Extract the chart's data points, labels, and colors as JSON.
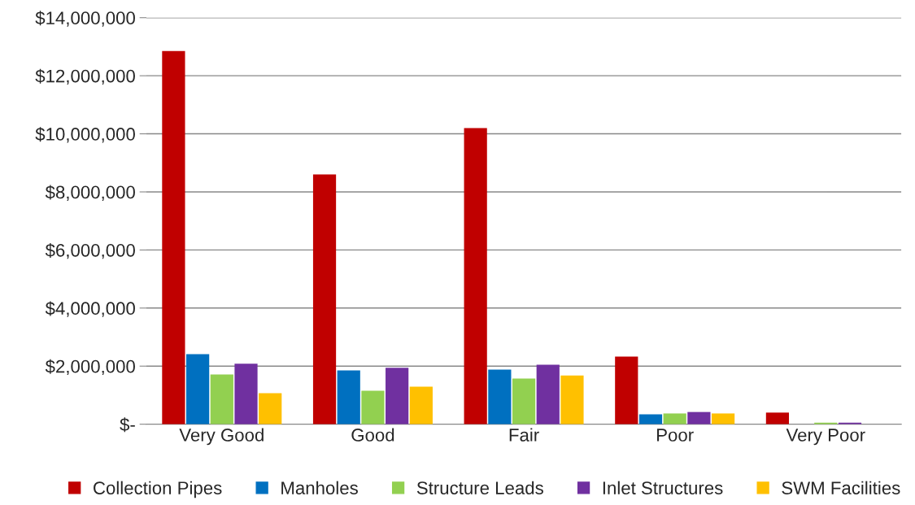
{
  "chart_data": {
    "type": "bar",
    "categories": [
      "Very Good",
      "Good",
      "Fair",
      "Poor",
      "Very Poor"
    ],
    "series": [
      {
        "name": "Collection Pipes",
        "color": "#c00000",
        "values": [
          12850000,
          8600000,
          10200000,
          2330000,
          400000
        ]
      },
      {
        "name": "Manholes",
        "color": "#0070c0",
        "values": [
          2410000,
          1850000,
          1880000,
          340000,
          null
        ]
      },
      {
        "name": "Structure Leads",
        "color": "#92d050",
        "values": [
          1710000,
          1150000,
          1570000,
          370000,
          50000
        ]
      },
      {
        "name": "Inlet Structures",
        "color": "#7030a0",
        "values": [
          2080000,
          1940000,
          2050000,
          420000,
          50000
        ]
      },
      {
        "name": "SWM Facilities",
        "color": "#ffc000",
        "values": [
          1070000,
          1290000,
          1680000,
          370000,
          0
        ]
      }
    ],
    "ylim": [
      0,
      14000000
    ],
    "yticks": [
      {
        "value": 0,
        "label": "$-"
      },
      {
        "value": 2000000,
        "label": "$2,000,000"
      },
      {
        "value": 4000000,
        "label": "$4,000,000"
      },
      {
        "value": 6000000,
        "label": "$6,000,000"
      },
      {
        "value": 8000000,
        "label": "$8,000,000"
      },
      {
        "value": 10000000,
        "label": "$10,000,000"
      },
      {
        "value": 12000000,
        "label": "$12,000,000"
      },
      {
        "value": 14000000,
        "label": "$14,000,000"
      }
    ],
    "grid": "y",
    "legend": "bottom"
  }
}
